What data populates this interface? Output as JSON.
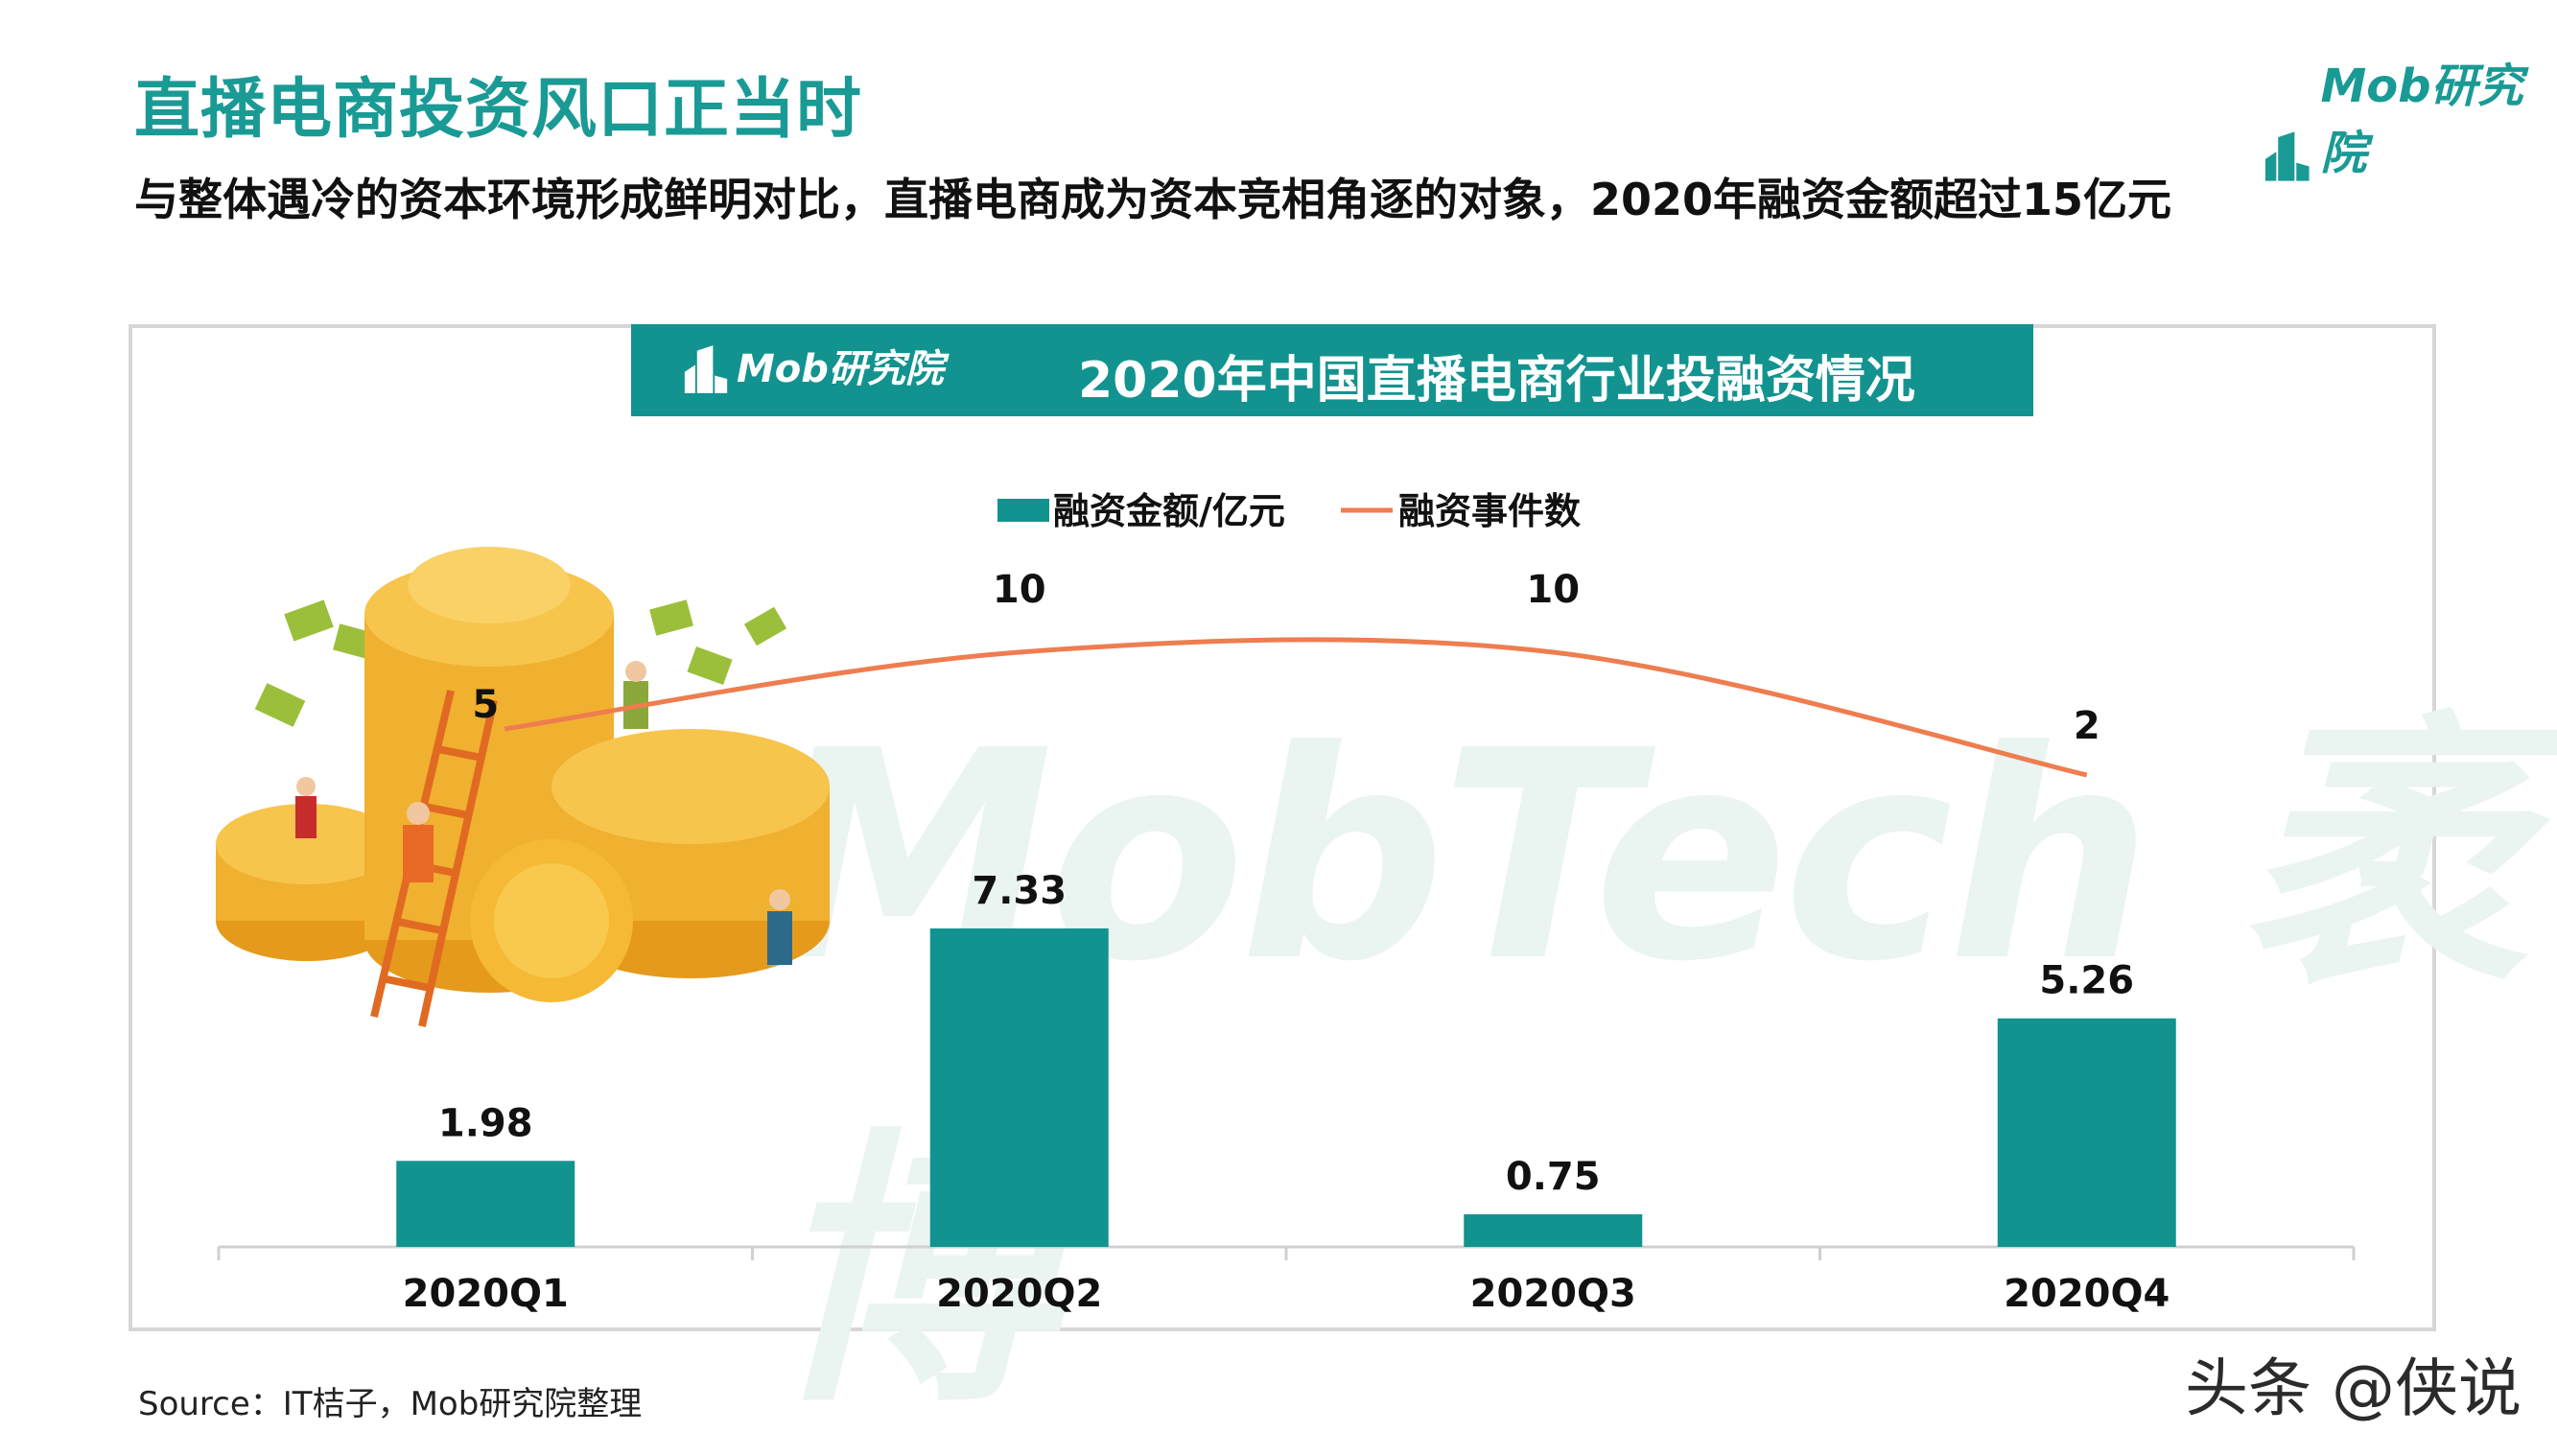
{
  "page": {
    "title": "直播电商投资风口正当时",
    "subtitle": "与整体遇冷的资本环境形成鲜明对比，直播电商成为资本竞相角逐的对象，2020年融资金额超过15亿元",
    "brand": "Mob研究院",
    "source": "Source：IT桔子，Mob研究院整理",
    "watermark": "头条 @侠说",
    "bg_watermark": "MobTech 袤博"
  },
  "colors": {
    "accent": "#1a9a95",
    "bar": "#12938f",
    "line": "#ee7d4f",
    "header_bg": "#12938f"
  },
  "chart_data": {
    "type": "bar",
    "title": "2020年中国直播电商行业投融资情况",
    "categories": [
      "2020Q1",
      "2020Q2",
      "2020Q3",
      "2020Q4"
    ],
    "series": [
      {
        "name": "融资金额/亿元",
        "type": "bar",
        "values": [
          1.98,
          7.33,
          0.75,
          5.26
        ]
      },
      {
        "name": "融资事件数",
        "type": "line",
        "values": [
          5,
          10,
          10,
          2
        ]
      }
    ],
    "legend_position": "top-center",
    "grid": false
  }
}
